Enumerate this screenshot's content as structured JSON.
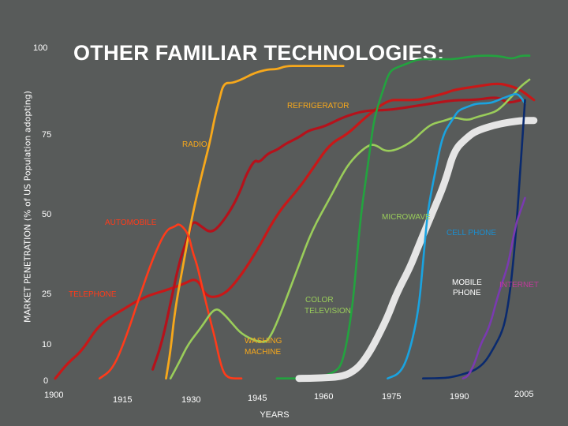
{
  "chart_data": {
    "type": "line",
    "title": "OTHER FAMILIAR TECHNOLOGIES:",
    "xlabel": "YEARS",
    "ylabel": "MARKET PENETRATION (% of US Population adopting)",
    "xlim": [
      1900,
      2010
    ],
    "y_ticks": [
      "100",
      "75",
      "50",
      "25",
      "10",
      "0"
    ],
    "x_ticks": [
      "1900",
      "1915",
      "1930",
      "1945",
      "1960",
      "1975",
      "1990",
      "2005"
    ],
    "grid": false,
    "series": [
      {
        "name": "TELEPHONE",
        "color": "#c81818",
        "x": [
          1900,
          1903,
          1906,
          1910,
          1915,
          1920,
          1925,
          1929,
          1932,
          1934,
          1937,
          1940,
          1945,
          1950,
          1955,
          1958,
          1962,
          1966,
          1970,
          1975,
          1978,
          1982,
          1985,
          1988,
          1990,
          1995,
          2000,
          2003,
          2005,
          2008
        ],
        "y": [
          0.5,
          5,
          8,
          16,
          20,
          24,
          26,
          28,
          30,
          24,
          24,
          27,
          37,
          50,
          58,
          64,
          72,
          75,
          80,
          85,
          85,
          85,
          86,
          87,
          88,
          89,
          90,
          89,
          88,
          85
        ]
      },
      {
        "name": "RADIO",
        "color": "#b5121b",
        "x": [
          1922,
          1924,
          1926,
          1928,
          1930,
          1931,
          1933,
          1935,
          1937,
          1940,
          1942,
          1943,
          1945,
          1946,
          1948,
          1950,
          1952,
          1955,
          1957,
          1960,
          1962,
          1965,
          1970,
          1975,
          1980,
          1985,
          1990,
          1995,
          2000,
          2002,
          2005
        ],
        "y": [
          3,
          10,
          22,
          35,
          43,
          48,
          46,
          44,
          46,
          52,
          58,
          62,
          67,
          66,
          69,
          70,
          72,
          74,
          76,
          77,
          78,
          80,
          82,
          82,
          83,
          84,
          85,
          85,
          86,
          84,
          85
        ]
      },
      {
        "name": "REFRIGERATOR",
        "color": "#f7a81b",
        "x": [
          1925,
          1926,
          1927,
          1929,
          1931,
          1933,
          1935,
          1936,
          1937,
          1938,
          1940,
          1942,
          1945,
          1948,
          1950,
          1952,
          1955,
          1957,
          1960,
          1962,
          1965
        ],
        "y": [
          0.5,
          8,
          20,
          35,
          50,
          62,
          73,
          80,
          85,
          90,
          90,
          91,
          93,
          94,
          94,
          95,
          95,
          95,
          95,
          95,
          95
        ]
      },
      {
        "name": "AUTOMOBILE",
        "color": "#ff3b1a",
        "x": [
          1910,
          1913,
          1916,
          1919,
          1922,
          1925,
          1927,
          1928,
          1930,
          1931,
          1932,
          1933,
          1935,
          1936,
          1937,
          1938,
          1939,
          1940,
          1942
        ],
        "y": [
          0.5,
          3,
          12,
          24,
          36,
          45,
          46,
          47,
          44,
          38,
          34,
          28,
          17,
          12,
          6,
          2,
          0.8,
          0.5,
          0.5
        ]
      },
      {
        "name": "WASHING MACHINE",
        "color": "#9acd5a",
        "x": [
          1926,
          1928,
          1930,
          1933,
          1936,
          1938,
          1940,
          1942,
          1945,
          1947,
          1948,
          1950,
          1955,
          1958,
          1962,
          1965,
          1967,
          1970,
          1972,
          1975,
          1980,
          1983,
          1985,
          1988,
          1990,
          1993,
          1995,
          1998,
          2000,
          2003,
          2005,
          2007
        ],
        "y": [
          0.5,
          5,
          10,
          15,
          21,
          19,
          16,
          13,
          11,
          10.5,
          11,
          16,
          34,
          45,
          55,
          63,
          67,
          71,
          72,
          69,
          72,
          76,
          78,
          79,
          80,
          79,
          80,
          81,
          82,
          86,
          89,
          91
        ]
      },
      {
        "name": "COLOR TELEVISION",
        "color": "#23a33f",
        "x": [
          1950,
          1958,
          1963,
          1965,
          1967,
          1968,
          1969,
          1970,
          1971,
          1972,
          1974,
          1975,
          1976,
          1978,
          1980,
          1982,
          1985,
          1988,
          1990,
          1995,
          2000,
          2003,
          2005,
          2007
        ],
        "y": [
          0.5,
          0.5,
          2,
          5,
          20,
          35,
          50,
          60,
          70,
          80,
          88,
          92,
          94,
          95,
          96,
          97,
          97,
          97,
          97,
          98,
          98,
          97,
          98,
          98
        ]
      },
      {
        "name": "MICROWAVE",
        "color": "#e5e5e5",
        "x": [
          1955,
          1960,
          1965,
          1968,
          1970,
          1972,
          1975,
          1977,
          1980,
          1982,
          1985,
          1988,
          1990,
          1993,
          1995,
          2000,
          2005,
          2008
        ],
        "y": [
          0.5,
          0.6,
          1,
          3,
          6,
          10,
          18,
          25,
          33,
          40,
          50,
          60,
          70,
          74,
          76,
          78,
          79,
          79
        ]
      },
      {
        "name": "CELL PHONE",
        "color": "#1aa3e0",
        "x": [
          1975,
          1978,
          1980,
          1982,
          1983,
          1984,
          1985,
          1986,
          1987,
          1988,
          1989,
          1990,
          1991,
          1993,
          1995,
          1998,
          2000,
          2002,
          2004,
          2005,
          2006
        ],
        "y": [
          0.5,
          2,
          8,
          20,
          35,
          50,
          58,
          65,
          72,
          76,
          78,
          80,
          82,
          83,
          84,
          84,
          85,
          86,
          87,
          86,
          84
        ]
      },
      {
        "name": "MOBILE PHONE",
        "color": "#0a2a6e",
        "x": [
          1983,
          1988,
          1990,
          1993,
          1995,
          1997,
          1999,
          2001,
          2002,
          2003,
          2004,
          2005,
          2006
        ],
        "y": [
          0.5,
          0.6,
          1,
          2,
          3,
          5,
          9,
          14,
          20,
          30,
          45,
          65,
          85
        ]
      },
      {
        "name": "INTERNET",
        "color": "#7a3ab0",
        "x": [
          1992,
          1993,
          1994,
          1995,
          1996,
          1998,
          2000,
          2002,
          2003,
          2004,
          2005,
          2006
        ],
        "y": [
          0.5,
          1,
          3,
          6,
          10,
          15,
          25,
          33,
          40,
          47,
          51,
          55
        ]
      }
    ],
    "labels": [
      {
        "text": "REFRIGERATOR",
        "color": "#f7a81b"
      },
      {
        "text": "RADIO",
        "color": "#f7a81b"
      },
      {
        "text": "AUTOMOBILE",
        "color": "#ff3b1a"
      },
      {
        "text": "MICROWAVE",
        "color": "#9acd5a"
      },
      {
        "text": "CELL PHONE",
        "color": "#1a8fd0"
      },
      {
        "text": "TELEPHONE",
        "color": "#ff3b1a"
      },
      {
        "text": "COLOR",
        "color": "#9acd5a"
      },
      {
        "text": "TELEVISION",
        "color": "#9acd5a"
      },
      {
        "text": "WASHING",
        "color": "#f7a81b"
      },
      {
        "text": "MACHINE",
        "color": "#f7a81b"
      },
      {
        "text": "MOBILE",
        "color": "#ffffff"
      },
      {
        "text": "PHONE",
        "color": "#ffffff"
      },
      {
        "text": "INTERNET",
        "color": "#c03a9a"
      }
    ]
  }
}
